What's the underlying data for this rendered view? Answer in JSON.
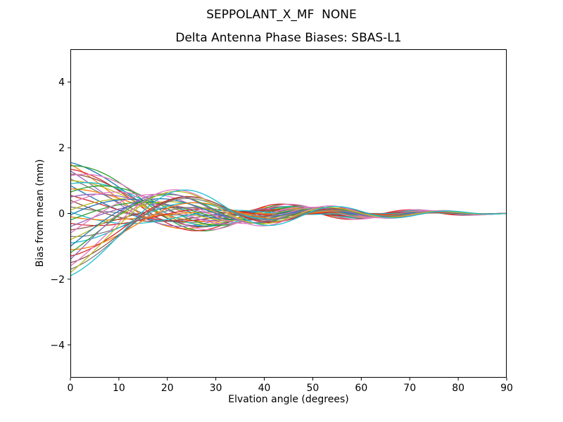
{
  "figure": {
    "suptitle": "SEPPOLANT_X_MF  NONE"
  },
  "chart_data": {
    "type": "line",
    "title": "Delta Antenna Phase Biases: SBAS-L1",
    "xlabel": "Elvation angle (degrees)",
    "ylabel": "Bias from mean (mm)",
    "xlim": [
      0,
      90
    ],
    "ylim": [
      -5,
      5
    ],
    "xticks": [
      0,
      10,
      20,
      30,
      40,
      50,
      60,
      70,
      80,
      90
    ],
    "yticks": [
      -4,
      -2,
      0,
      2,
      4
    ],
    "grid": false,
    "legend": "none",
    "background": "#ffffff",
    "axis_color": "#000000",
    "line_width": 1.3,
    "n_series": 40,
    "palette": [
      "#1f77b4",
      "#ff7f0e",
      "#2ca02c",
      "#d62728",
      "#9467bd",
      "#8c564b",
      "#e377c2",
      "#7f7f7f",
      "#bcbd22",
      "#17becf"
    ],
    "model": {
      "kind": "damped-chirp-cosine: y(x)=taper*(exp(-x/decay)*(start*cos(phi)+quad*sin(phi))+common_amp*exp(-x/common_decay)*sin(phi)); all series converge to 0 mm at 90 deg",
      "x_step_deg": 1,
      "period_end_deg": 20,
      "period_extra_deg": 50,
      "period_decay_deg": 26,
      "end_taper_power": 12,
      "common_amp": 0.15,
      "common_decay_deg": 70
    },
    "series_keys": [
      "start_mm",
      "quad",
      "decay_deg"
    ],
    "series": [
      [
        1.55,
        0.45,
        18
      ],
      [
        1.5,
        -0.3,
        21
      ],
      [
        1.45,
        0.6,
        24
      ],
      [
        1.35,
        0.15,
        27
      ],
      [
        1.3,
        -0.45,
        20
      ],
      [
        1.2,
        0.35,
        23
      ],
      [
        1.15,
        0.7,
        26
      ],
      [
        1.05,
        -0.2,
        19
      ],
      [
        1.0,
        0.3,
        22
      ],
      [
        0.9,
        0.55,
        25
      ],
      [
        0.85,
        -0.55,
        18
      ],
      [
        0.75,
        0.2,
        21
      ],
      [
        0.65,
        0.8,
        24
      ],
      [
        0.55,
        -0.35,
        27
      ],
      [
        0.5,
        0.5,
        20
      ],
      [
        0.4,
        -0.65,
        23
      ],
      [
        0.3,
        0.75,
        26
      ],
      [
        0.2,
        -0.3,
        19
      ],
      [
        0.1,
        0.55,
        22
      ],
      [
        0.05,
        -0.75,
        25
      ],
      [
        -0.05,
        0.65,
        18
      ],
      [
        -0.1,
        -0.5,
        21
      ],
      [
        -0.2,
        0.4,
        24
      ],
      [
        -0.3,
        -0.55,
        27
      ],
      [
        -0.4,
        0.3,
        20
      ],
      [
        -0.5,
        -0.2,
        23
      ],
      [
        -0.6,
        0.75,
        26
      ],
      [
        -0.7,
        -0.65,
        19
      ],
      [
        -0.8,
        0.2,
        22
      ],
      [
        -0.9,
        -0.4,
        25
      ],
      [
        -1.0,
        0.55,
        18
      ],
      [
        -1.1,
        -0.75,
        21
      ],
      [
        -1.2,
        0.45,
        24
      ],
      [
        -1.3,
        -0.3,
        27
      ],
      [
        -1.4,
        0.65,
        20
      ],
      [
        -1.5,
        -0.45,
        23
      ],
      [
        -1.6,
        0.35,
        26
      ],
      [
        -1.7,
        -0.55,
        19
      ],
      [
        -1.8,
        0.25,
        22
      ],
      [
        -1.9,
        -0.2,
        25
      ]
    ]
  }
}
